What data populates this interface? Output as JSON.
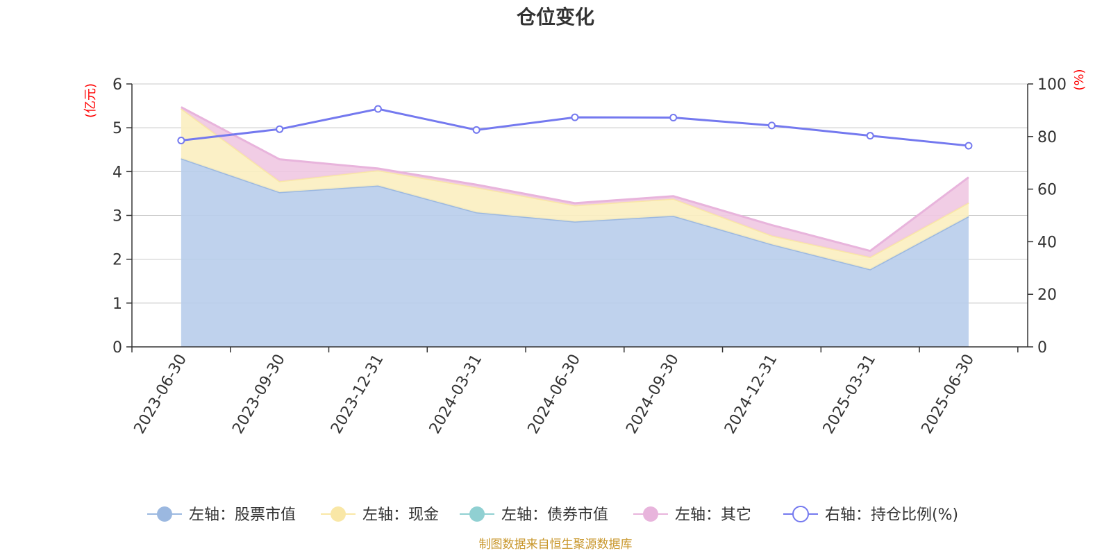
{
  "chart_data": {
    "type": "area",
    "title": "仓位变化",
    "left_axis_unit": "(亿元)",
    "right_axis_unit": "(%)",
    "categories": [
      "2023-06-30",
      "2023-09-30",
      "2023-12-31",
      "2024-03-31",
      "2024-06-30",
      "2024-09-30",
      "2024-12-31",
      "2025-03-31",
      "2025-06-30"
    ],
    "ylim_left": [
      0,
      6
    ],
    "yticks_left": [
      0,
      1,
      2,
      3,
      4,
      5,
      6
    ],
    "ylim_right": [
      0,
      100
    ],
    "yticks_right": [
      0,
      20,
      40,
      60,
      80,
      100
    ],
    "grid": true,
    "legend_position": "bottom",
    "series": [
      {
        "name": "左轴：股票市值",
        "axis": "left",
        "kind": "stacked-area",
        "color": "#9bb8e0",
        "fill": "#b8cdeb",
        "values": [
          4.3,
          3.53,
          3.68,
          3.07,
          2.86,
          2.99,
          2.34,
          1.77,
          2.98
        ]
      },
      {
        "name": "左轴：现金",
        "axis": "left",
        "kind": "stacked-area",
        "color": "#f9e7a6",
        "fill": "#fbeec0",
        "values": [
          1.14,
          0.25,
          0.35,
          0.57,
          0.37,
          0.39,
          0.2,
          0.28,
          0.31
        ]
      },
      {
        "name": "左轴：债券市值",
        "axis": "left",
        "kind": "stacked-area",
        "color": "#90d0d2",
        "fill": "#b5e0e1",
        "values": [
          0,
          0,
          0,
          0,
          0,
          0,
          0,
          0,
          0
        ]
      },
      {
        "name": "左轴：其它",
        "axis": "left",
        "kind": "stacked-area",
        "color": "#e8b4dc",
        "fill": "#f0c8e2",
        "values": [
          0.03,
          0.5,
          0.04,
          0.06,
          0.05,
          0.06,
          0.24,
          0.14,
          0.58
        ]
      },
      {
        "name": "右轴：持仓比例(%)",
        "axis": "right",
        "kind": "line",
        "color": "#7479ef",
        "fill": "#7479ef",
        "values": [
          78.5,
          82.8,
          90.5,
          82.5,
          87.3,
          87.2,
          84.2,
          80.3,
          76.5
        ]
      }
    ]
  },
  "source_note": "制图数据来自恒生聚源数据库"
}
